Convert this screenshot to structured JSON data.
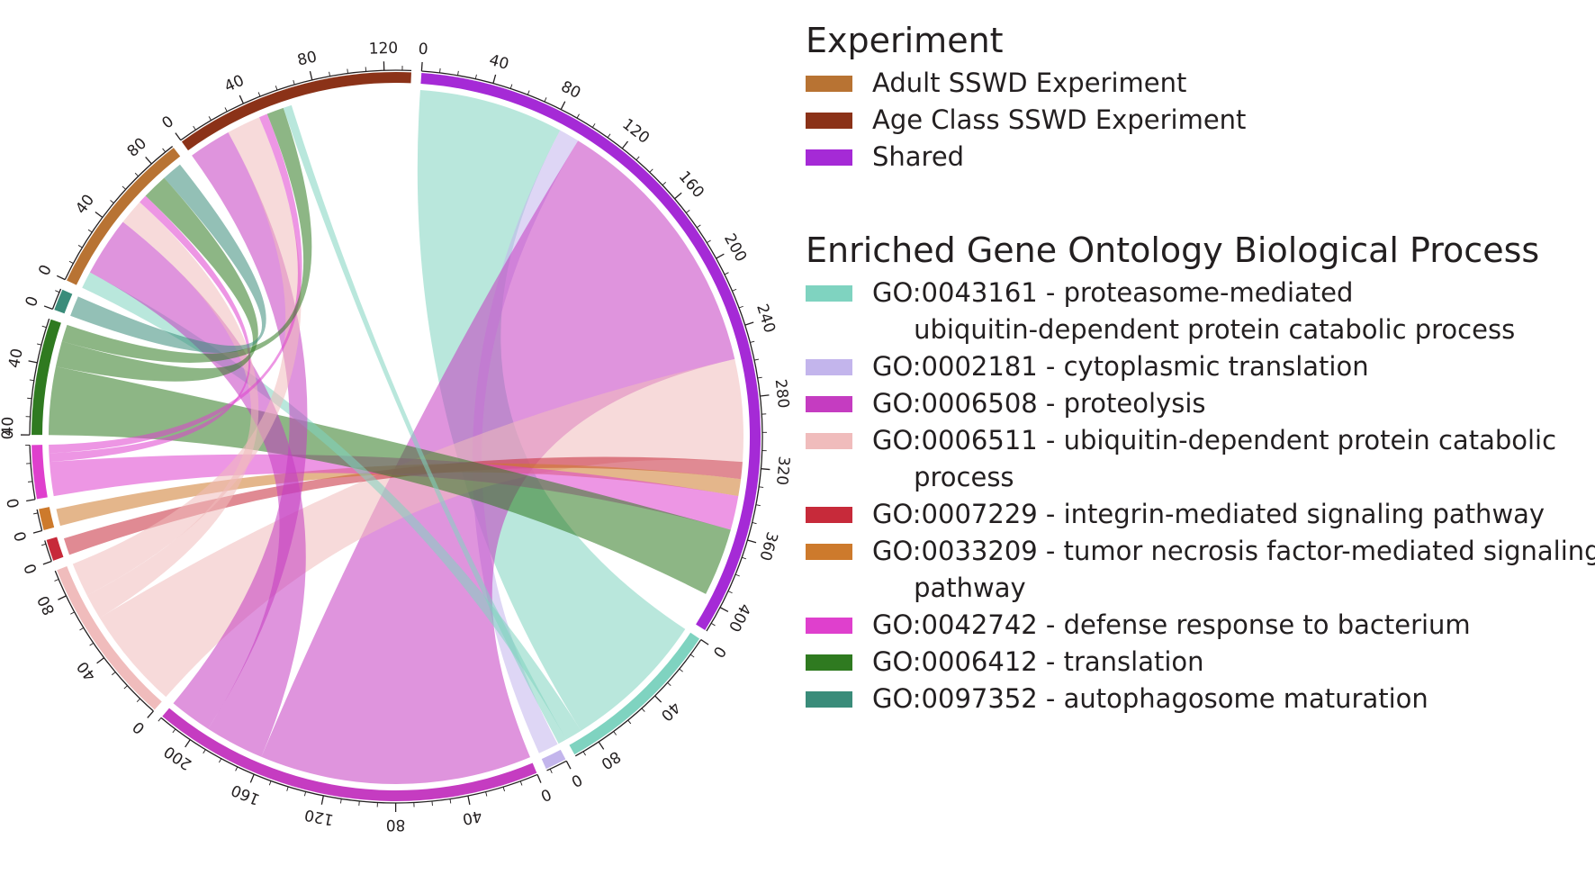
{
  "legend_experiment": {
    "title": "Experiment",
    "items": [
      {
        "label": "Adult SSWD Experiment",
        "color": "#b87333"
      },
      {
        "label": "Age Class SSWD Experiment",
        "color": "#8b3218"
      },
      {
        "label": "Shared",
        "color": "#a52ad6"
      }
    ]
  },
  "legend_go": {
    "title": "Enriched Gene Ontology Biological Process",
    "items": [
      {
        "label": "GO:0043161 - proteasome-mediated\n     ubiquitin-dependent protein catabolic process",
        "color": "#7fd3c0"
      },
      {
        "label": "GO:0002181 - cytoplasmic translation",
        "color": "#c3b5ec"
      },
      {
        "label": "GO:0006508 - proteolysis",
        "color": "#c53cc1"
      },
      {
        "label": "GO:0006511 - ubiquitin-dependent protein catabolic\n     process",
        "color": "#f0bcbc"
      },
      {
        "label": "GO:0007229 - integrin-mediated signaling pathway",
        "color": "#c72a3a"
      },
      {
        "label": "GO:0033209 - tumor necrosis factor-mediated signaling\n     pathway",
        "color": "#cd7a2c"
      },
      {
        "label": "GO:0042742 - defense response to bacterium",
        "color": "#df40cd"
      },
      {
        "label": "GO:0006412 - translation",
        "color": "#2f7a20"
      },
      {
        "label": "GO:0097352 - autophagosome maturation",
        "color": "#3a8c7a"
      }
    ]
  },
  "chart_data": {
    "type": "chord",
    "sectors": [
      {
        "name": "Shared",
        "value": 415,
        "color": "#a52ad6",
        "ticks": [
          0,
          40,
          80,
          120,
          160,
          200,
          240,
          280,
          320,
          360,
          400
        ]
      },
      {
        "name": "GO:0043161",
        "value": 95,
        "color": "#7fd3c0",
        "ticks": [
          0,
          40,
          80
        ]
      },
      {
        "name": "GO:0002181",
        "value": 12,
        "color": "#c3b5ec",
        "ticks": [
          0
        ]
      },
      {
        "name": "GO:0006508",
        "value": 220,
        "color": "#c53cc1",
        "ticks": [
          0,
          40,
          80,
          120,
          160,
          200
        ]
      },
      {
        "name": "GO:0006511",
        "value": 95,
        "color": "#f0bcbc",
        "ticks": [
          0,
          40,
          80
        ]
      },
      {
        "name": "GO:0007229",
        "value": 12,
        "color": "#c72a3a",
        "ticks": [
          0
        ]
      },
      {
        "name": "GO:0033209",
        "value": 12,
        "color": "#cd7a2c",
        "ticks": [
          0
        ]
      },
      {
        "name": "GO:0042742",
        "value": 30,
        "color": "#df40cd",
        "ticks": [
          0,
          40
        ]
      },
      {
        "name": "GO:0006412",
        "value": 65,
        "color": "#2f7a20",
        "ticks": [
          0,
          40
        ]
      },
      {
        "name": "GO:0097352",
        "value": 12,
        "color": "#3a8c7a",
        "ticks": [
          0
        ]
      },
      {
        "name": "Adult SSWD Experiment",
        "value": 95,
        "color": "#b87333",
        "ticks": [
          0,
          40,
          80
        ]
      },
      {
        "name": "Age Class SSWD Experiment",
        "value": 135,
        "color": "#8b3218",
        "ticks": [
          0,
          40,
          80,
          120
        ]
      }
    ],
    "links": [
      {
        "source": "Shared",
        "target": "GO:0043161",
        "value": 85
      },
      {
        "source": "Shared",
        "target": "GO:0002181",
        "value": 12
      },
      {
        "source": "Shared",
        "target": "GO:0006508",
        "value": 160
      },
      {
        "source": "Shared",
        "target": "GO:0006511",
        "value": 60
      },
      {
        "source": "Shared",
        "target": "GO:0007229",
        "value": 10
      },
      {
        "source": "Shared",
        "target": "GO:0033209",
        "value": 10
      },
      {
        "source": "Shared",
        "target": "GO:0042742",
        "value": 20
      },
      {
        "source": "Shared",
        "target": "GO:0006412",
        "value": 40
      },
      {
        "source": "Adult SSWD Experiment",
        "target": "GO:0043161",
        "value": 10
      },
      {
        "source": "Adult SSWD Experiment",
        "target": "GO:0006508",
        "value": 35
      },
      {
        "source": "Adult SSWD Experiment",
        "target": "GO:0006511",
        "value": 15
      },
      {
        "source": "Adult SSWD Experiment",
        "target": "GO:0042742",
        "value": 5
      },
      {
        "source": "Adult SSWD Experiment",
        "target": "GO:0006412",
        "value": 15
      },
      {
        "source": "Adult SSWD Experiment",
        "target": "GO:0097352",
        "value": 12
      },
      {
        "source": "Age Class SSWD Experiment",
        "target": "GO:0006508",
        "value": 25
      },
      {
        "source": "Age Class SSWD Experiment",
        "target": "GO:0006511",
        "value": 20
      },
      {
        "source": "Age Class SSWD Experiment",
        "target": "GO:0042742",
        "value": 5
      },
      {
        "source": "Age Class SSWD Experiment",
        "target": "GO:0006412",
        "value": 10
      },
      {
        "source": "Age Class SSWD Experiment",
        "target": "GO:0043161",
        "value": 5
      }
    ]
  }
}
